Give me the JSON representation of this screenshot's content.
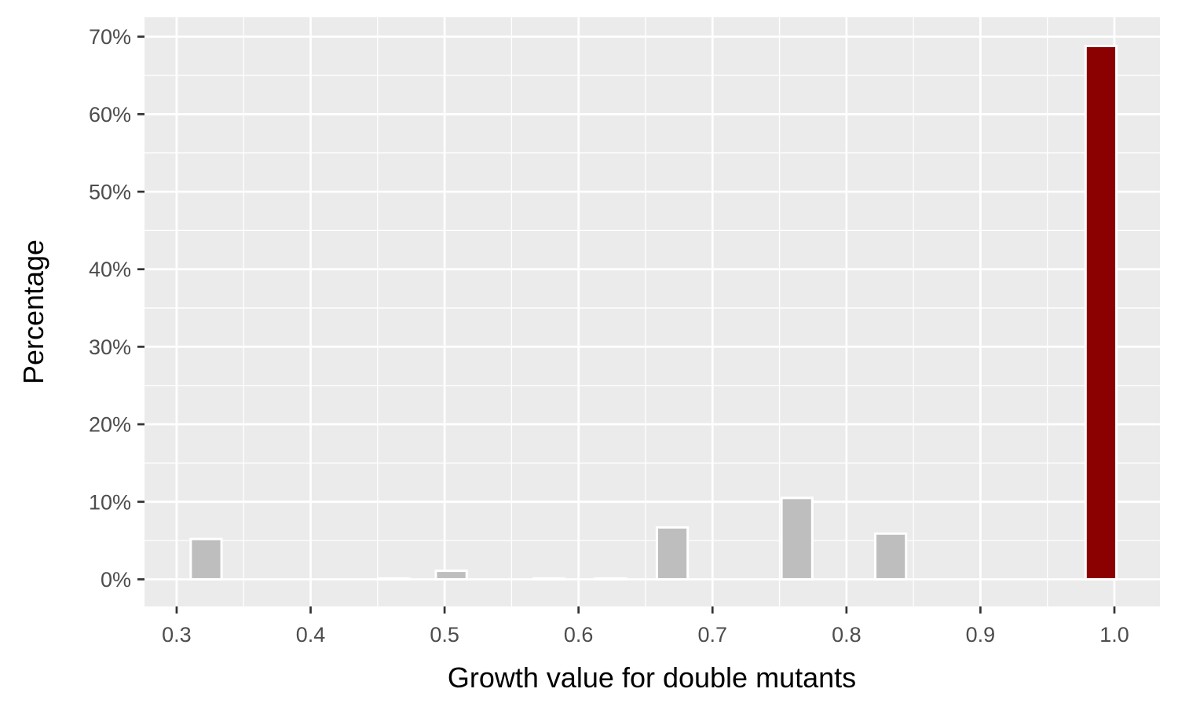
{
  "chart_data": {
    "type": "bar",
    "title": "",
    "xlabel": "Growth value for double mutants",
    "ylabel": "Percentage",
    "xlim": [
      0.276,
      1.034
    ],
    "ylim": [
      -3.5,
      72.5
    ],
    "xticks": [
      {
        "value": 0.3,
        "label": "0.3"
      },
      {
        "value": 0.4,
        "label": "0.4"
      },
      {
        "value": 0.5,
        "label": "0.5"
      },
      {
        "value": 0.6,
        "label": "0.6"
      },
      {
        "value": 0.7,
        "label": "0.7"
      },
      {
        "value": 0.8,
        "label": "0.8"
      },
      {
        "value": 0.9,
        "label": "0.9"
      },
      {
        "value": 1.0,
        "label": "1.0"
      }
    ],
    "yticks": [
      {
        "value": 0,
        "label": "0%"
      },
      {
        "value": 10,
        "label": "10%"
      },
      {
        "value": 20,
        "label": "20%"
      },
      {
        "value": 30,
        "label": "30%"
      },
      {
        "value": 40,
        "label": "40%"
      },
      {
        "value": 50,
        "label": "50%"
      },
      {
        "value": 60,
        "label": "60%"
      },
      {
        "value": 70,
        "label": "70%"
      }
    ],
    "bin_width": 0.023,
    "bars": [
      {
        "x": 0.322,
        "y": 5.2,
        "color": "#bebebe"
      },
      {
        "x": 0.462,
        "y": 0.1,
        "color": "#bebebe"
      },
      {
        "x": 0.505,
        "y": 1.1,
        "color": "#bebebe"
      },
      {
        "x": 0.578,
        "y": 0.1,
        "color": "#bebebe"
      },
      {
        "x": 0.624,
        "y": 0.1,
        "color": "#bebebe"
      },
      {
        "x": 0.67,
        "y": 6.7,
        "color": "#bebebe"
      },
      {
        "x": 0.763,
        "y": 10.5,
        "color": "#bebebe"
      },
      {
        "x": 0.833,
        "y": 5.9,
        "color": "#bebebe"
      },
      {
        "x": 0.99,
        "y": 68.8,
        "color": "#8b0000"
      }
    ],
    "grid": true,
    "panel_background": "#ebebeb",
    "grid_color": "#ffffff",
    "bar_outline": "#ffffff"
  }
}
